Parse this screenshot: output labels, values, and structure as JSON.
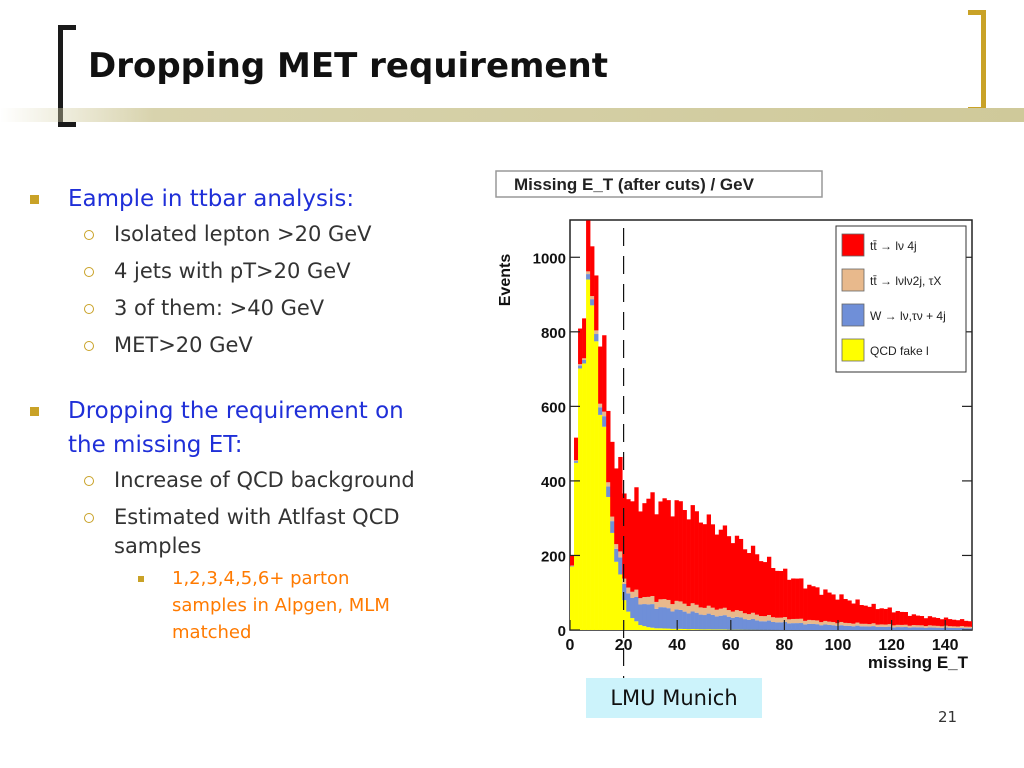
{
  "slide": {
    "title": "Dropping MET requirement",
    "page_number": "21",
    "badge": "LMU Munich",
    "bullets": [
      {
        "text": "Eample in ttbar analysis:",
        "sub": [
          "Isolated lepton >20 GeV",
          "4 jets with pT>20 GeV",
          "3 of them: >40 GeV",
          "MET>20 GeV"
        ]
      },
      {
        "text_line1": "Dropping the requirement on",
        "text_line2": "the missing ET:",
        "sub": [
          "Increase of QCD background",
          "Estimated with Atlfast QCD",
          "samples"
        ],
        "subsub": [
          "1,2,3,4,5,6+ parton",
          "samples in Alpgen, MLM",
          "matched"
        ]
      }
    ],
    "colors": {
      "bullet_l1": "#1f2fd8",
      "bullet_l3": "#ff7a00",
      "accent": "#c9a227",
      "badge_bg": "#ccf3fb"
    }
  },
  "chart_data": {
    "type": "histogram-stacked",
    "title": "Missing E_T (after cuts) / GeV",
    "xlabel": "missing E_T",
    "ylabel": "Events",
    "xlim": [
      0,
      150
    ],
    "ylim": [
      0,
      1100
    ],
    "xticks": [
      "0",
      "20",
      "40",
      "60",
      "80",
      "100",
      "120",
      "140"
    ],
    "yticks": [
      "0",
      "200",
      "400",
      "600",
      "800",
      "1000"
    ],
    "cut_line_x": 20,
    "legend": [
      "tt̄ → lν 4j",
      "tt̄ → lνlν2j, τX",
      "W → lν,τν + 4j",
      "QCD fake l"
    ],
    "series": [
      {
        "name": "QCD fake l",
        "color": "#ffff00",
        "x": [
          0,
          2,
          4,
          6,
          8,
          10,
          12,
          14,
          16,
          18,
          20,
          22,
          24,
          26,
          28,
          30,
          35,
          40,
          50,
          60,
          80,
          100,
          120,
          150
        ],
        "values": [
          20,
          400,
          720,
          860,
          880,
          760,
          560,
          380,
          250,
          160,
          90,
          45,
          25,
          15,
          10,
          6,
          4,
          3,
          2,
          1,
          0,
          0,
          0,
          0
        ]
      },
      {
        "name": "W → lν,τν + 4j",
        "color": "#6f8fd8",
        "x": [
          0,
          5,
          10,
          15,
          20,
          25,
          30,
          40,
          50,
          60,
          70,
          80,
          100,
          120,
          150
        ],
        "values": [
          0,
          10,
          20,
          30,
          45,
          60,
          60,
          50,
          40,
          35,
          25,
          20,
          12,
          8,
          5
        ]
      },
      {
        "name": "tt̄ → lνlν2j, τX",
        "color": "#e8b98c",
        "x": [
          0,
          5,
          10,
          15,
          20,
          25,
          30,
          40,
          50,
          60,
          70,
          80,
          100,
          120,
          150
        ],
        "values": [
          0,
          5,
          10,
          12,
          15,
          18,
          20,
          22,
          20,
          18,
          15,
          12,
          8,
          6,
          4
        ]
      },
      {
        "name": "tt̄ → lν 4j",
        "color": "#ff0000",
        "x": [
          0,
          5,
          8,
          10,
          12,
          15,
          18,
          20,
          25,
          30,
          35,
          40,
          45,
          50,
          55,
          60,
          65,
          70,
          75,
          80,
          90,
          100,
          110,
          120,
          130,
          140,
          150
        ],
        "values": [
          10,
          120,
          130,
          150,
          180,
          200,
          220,
          240,
          250,
          260,
          260,
          260,
          250,
          235,
          215,
          200,
          180,
          160,
          140,
          120,
          90,
          70,
          50,
          40,
          25,
          20,
          15
        ]
      }
    ]
  }
}
